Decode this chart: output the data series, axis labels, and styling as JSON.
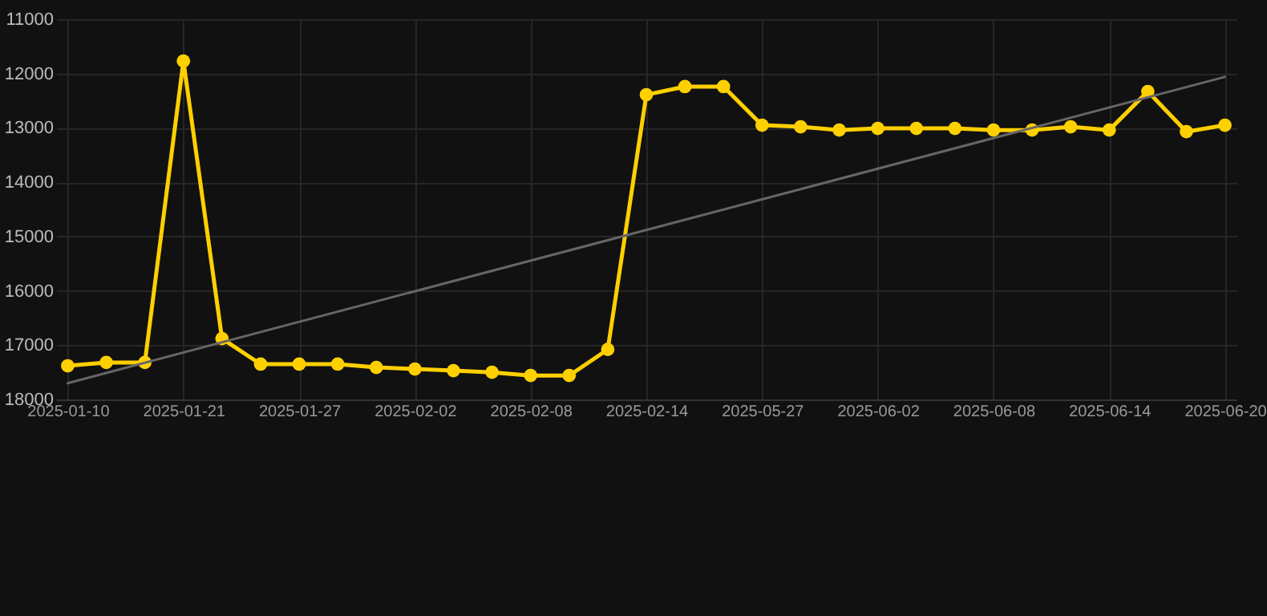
{
  "chart_data": {
    "type": "line",
    "categories": [
      "2025-01-10",
      null,
      null,
      "2025-01-21",
      null,
      null,
      "2025-01-27",
      null,
      null,
      "2025-02-02",
      null,
      null,
      "2025-02-08",
      null,
      null,
      "2025-02-14",
      null,
      null,
      "2025-05-27",
      null,
      null,
      "2025-06-02",
      null,
      null,
      "2025-06-08",
      null,
      null,
      "2025-06-14",
      null,
      null,
      "2025-06-20"
    ],
    "series": [
      {
        "color": "#ffd000",
        "marker": "circle",
        "values": [
          17380,
          17320,
          17320,
          11770,
          16880,
          17350,
          17350,
          17350,
          17410,
          17440,
          17470,
          17500,
          17560,
          17560,
          17080,
          12390,
          12240,
          12240,
          12950,
          12980,
          13040,
          13010,
          13010,
          13010,
          13040,
          13040,
          12980,
          13040,
          12330,
          13070,
          12950
        ]
      },
      {
        "type": "line",
        "color": "#666666",
        "marker": "none",
        "values": [
          17700,
          null,
          null,
          null,
          null,
          null,
          null,
          null,
          null,
          null,
          null,
          null,
          null,
          null,
          null,
          null,
          null,
          null,
          null,
          null,
          null,
          null,
          null,
          null,
          null,
          null,
          null,
          null,
          null,
          null,
          12060
        ]
      }
    ],
    "ylim": [
      18000,
      11000
    ],
    "yticks": [
      11000,
      12000,
      13000,
      14000,
      15000,
      16000,
      17000,
      18000
    ],
    "grid": true
  }
}
